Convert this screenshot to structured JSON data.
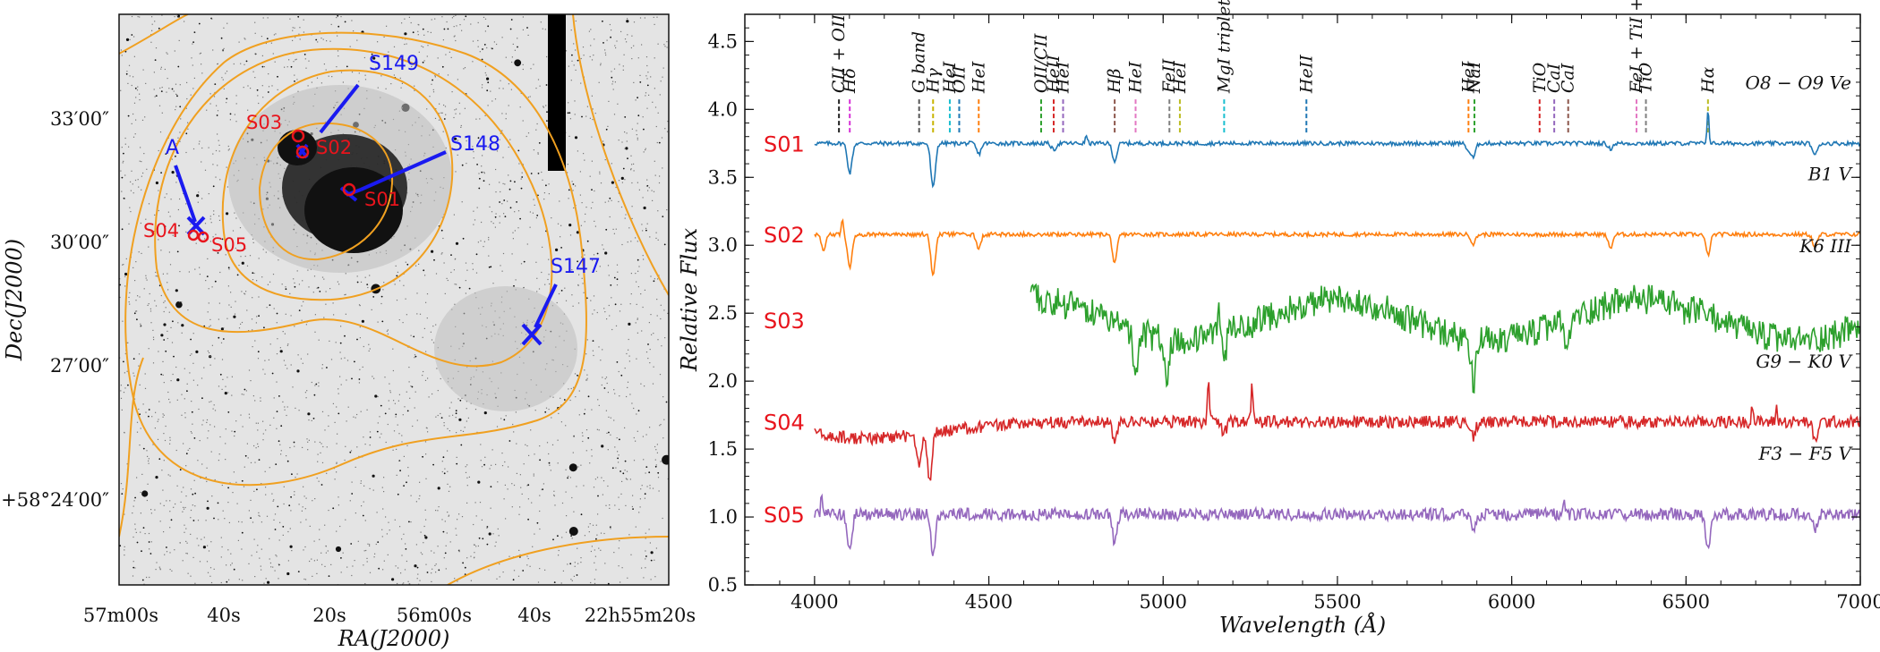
{
  "chart_data": [
    {
      "type": "image",
      "panel": "left",
      "xlabel": "RA(J2000)",
      "ylabel": "Dec(J2000)",
      "x_ticks": [
        "57m00s",
        "40s",
        "20s",
        "56m00s",
        "40s",
        "22h55m20s"
      ],
      "y_ticks": [
        "33′00″",
        "30′00″",
        "27′00″",
        "+58°24′00″"
      ],
      "markers_red": [
        "S01",
        "S02",
        "S03",
        "S04",
        "S05"
      ],
      "markers_blue": [
        "S149",
        "S148",
        "A",
        "S147"
      ],
      "contour_color": "#f0a020",
      "marker_colors": {
        "red": "#e8141c",
        "blue": "#1a1af0"
      }
    },
    {
      "type": "line",
      "panel": "right",
      "xlabel": "Wavelength (Å)",
      "ylabel": "Relative Flux",
      "xlim": [
        3800,
        7000
      ],
      "ylim": [
        0.5,
        4.7
      ],
      "x_ticks": [
        4000,
        4500,
        5000,
        5500,
        6000,
        6500,
        7000
      ],
      "y_ticks": [
        "0.5",
        "1.0",
        "1.5",
        "2.0",
        "2.5",
        "3.0",
        "3.5",
        "4.0",
        "4.5"
      ],
      "series": [
        {
          "name": "S01",
          "type_label": "O8 − O9 Ve",
          "color": "#1f77b4",
          "level": 3.75,
          "start": 4000,
          "noise": 0.015,
          "lines": [
            [
              4101,
              0.22
            ],
            [
              4340,
              0.33
            ],
            [
              4471,
              0.08
            ],
            [
              4686,
              0.05
            ],
            [
              4861,
              0.13
            ],
            [
              5876,
              0.05
            ],
            [
              5890,
              0.1
            ],
            [
              6283,
              0.04
            ],
            [
              6870,
              0.09
            ]
          ],
          "emission": [
            [
              6563,
              0.25
            ],
            [
              4780,
              0.06
            ]
          ]
        },
        {
          "name": "S02",
          "type_label": "B1 V",
          "color": "#ff7f0e",
          "level": 3.08,
          "start": 4000,
          "noise": 0.015,
          "lines": [
            [
              4026,
              0.12
            ],
            [
              4101,
              0.24
            ],
            [
              4340,
              0.3
            ],
            [
              4471,
              0.1
            ],
            [
              4861,
              0.22
            ],
            [
              5890,
              0.07
            ],
            [
              6283,
              0.1
            ],
            [
              6563,
              0.15
            ],
            [
              6870,
              0.1
            ]
          ],
          "emission": [
            [
              4080,
              0.12
            ]
          ]
        },
        {
          "name": "S03",
          "type_label": "K6 III",
          "color": "#2ca02c",
          "level": 2.45,
          "start": 4620,
          "noise": 0.11,
          "lines": [
            [
              4920,
              0.3
            ],
            [
              5010,
              0.25
            ],
            [
              5175,
              0.2
            ],
            [
              5890,
              0.32
            ],
            [
              6160,
              0.25
            ],
            [
              6500,
              0.12
            ]
          ],
          "emission": [
            [
              5160,
              0.25
            ]
          ]
        },
        {
          "name": "S04",
          "type_label": "G9 − K0 V",
          "color": "#d62728",
          "level": 1.7,
          "start": 4000,
          "noise": 0.045,
          "lines": [
            [
              4300,
              0.25
            ],
            [
              4330,
              0.35
            ],
            [
              4861,
              0.12
            ],
            [
              5175,
              0.08
            ],
            [
              5890,
              0.12
            ],
            [
              6870,
              0.15
            ]
          ],
          "emission": [
            [
              5130,
              0.35
            ],
            [
              5255,
              0.3
            ],
            [
              6690,
              0.12
            ],
            [
              6760,
              0.1
            ]
          ]
        },
        {
          "name": "S05",
          "type_label": "F3 − F5 V",
          "color": "#9467bd",
          "level": 1.02,
          "start": 4000,
          "noise": 0.045,
          "lines": [
            [
              4101,
              0.25
            ],
            [
              4340,
              0.3
            ],
            [
              4861,
              0.22
            ],
            [
              5890,
              0.12
            ],
            [
              6563,
              0.26
            ],
            [
              6870,
              0.12
            ]
          ],
          "emission": [
            [
              4020,
              0.12
            ],
            [
              6150,
              0.1
            ]
          ]
        }
      ],
      "line_ids": [
        {
          "label": "CII + OII",
          "wl": 4070,
          "color": "#222222"
        },
        {
          "label": "Hδ",
          "wl": 4101,
          "color": "#d62fd6"
        },
        {
          "label": "G band",
          "wl": 4300,
          "color": "#555555"
        },
        {
          "label": "Hγ",
          "wl": 4340,
          "color": "#c8b400"
        },
        {
          "label": "HeI",
          "wl": 4388,
          "color": "#17becf"
        },
        {
          "label": "OII",
          "wl": 4415,
          "color": "#1f77b4"
        },
        {
          "label": "HeI",
          "wl": 4471,
          "color": "#ff7f0e"
        },
        {
          "label": "OII/CII",
          "wl": 4650,
          "color": "#2ca02c"
        },
        {
          "label": "HeII",
          "wl": 4686,
          "color": "#d62728"
        },
        {
          "label": "HeI",
          "wl": 4713,
          "color": "#9467bd"
        },
        {
          "label": "Hβ",
          "wl": 4861,
          "color": "#8c564b"
        },
        {
          "label": "HeI",
          "wl": 4921,
          "color": "#e377c2"
        },
        {
          "label": "FeII",
          "wl": 5018,
          "color": "#7f7f7f"
        },
        {
          "label": "HeI",
          "wl": 5048,
          "color": "#bcbd22"
        },
        {
          "label": "MgI triplet",
          "wl": 5175,
          "color": "#17becf"
        },
        {
          "label": "HeII",
          "wl": 5411,
          "color": "#1f77b4"
        },
        {
          "label": "HeI",
          "wl": 5876,
          "color": "#ff7f0e"
        },
        {
          "label": "NaI",
          "wl": 5893,
          "color": "#2ca02c"
        },
        {
          "label": "TiO",
          "wl": 6080,
          "color": "#d62728"
        },
        {
          "label": "CaI",
          "wl": 6122,
          "color": "#9467bd"
        },
        {
          "label": "CaI",
          "wl": 6162,
          "color": "#8c564b"
        },
        {
          "label": "FeI + TiI + CrI",
          "wl": 6358,
          "color": "#e377c2"
        },
        {
          "label": "TiO",
          "wl": 6385,
          "color": "#7f7f7f"
        },
        {
          "label": "Hα",
          "wl": 6563,
          "color": "#bcbd22"
        }
      ]
    }
  ]
}
